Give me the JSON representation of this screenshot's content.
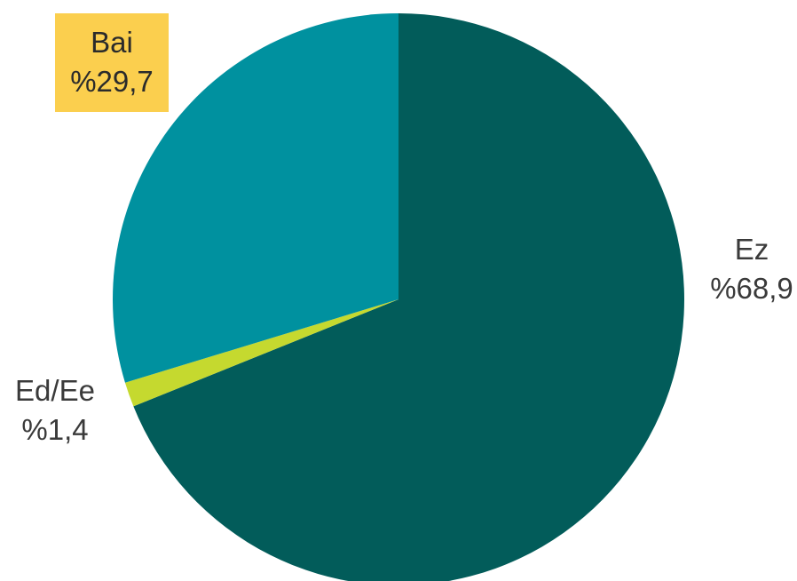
{
  "chart_data": {
    "type": "pie",
    "slices": [
      {
        "name": "Ez",
        "value": 68.9,
        "label": "%68,9",
        "color": "#025c5a"
      },
      {
        "name": "Ed/Ee",
        "value": 1.4,
        "label": "%1,4",
        "color": "#c5d92f"
      },
      {
        "name": "Bai",
        "value": 29.7,
        "label": "%29,7",
        "color": "#00919f"
      }
    ],
    "start": "12 o'clock",
    "direction": "clockwise",
    "highlighted_label": "Bai",
    "highlight_color": "#fbcf4e",
    "legend": "none",
    "title": ""
  }
}
